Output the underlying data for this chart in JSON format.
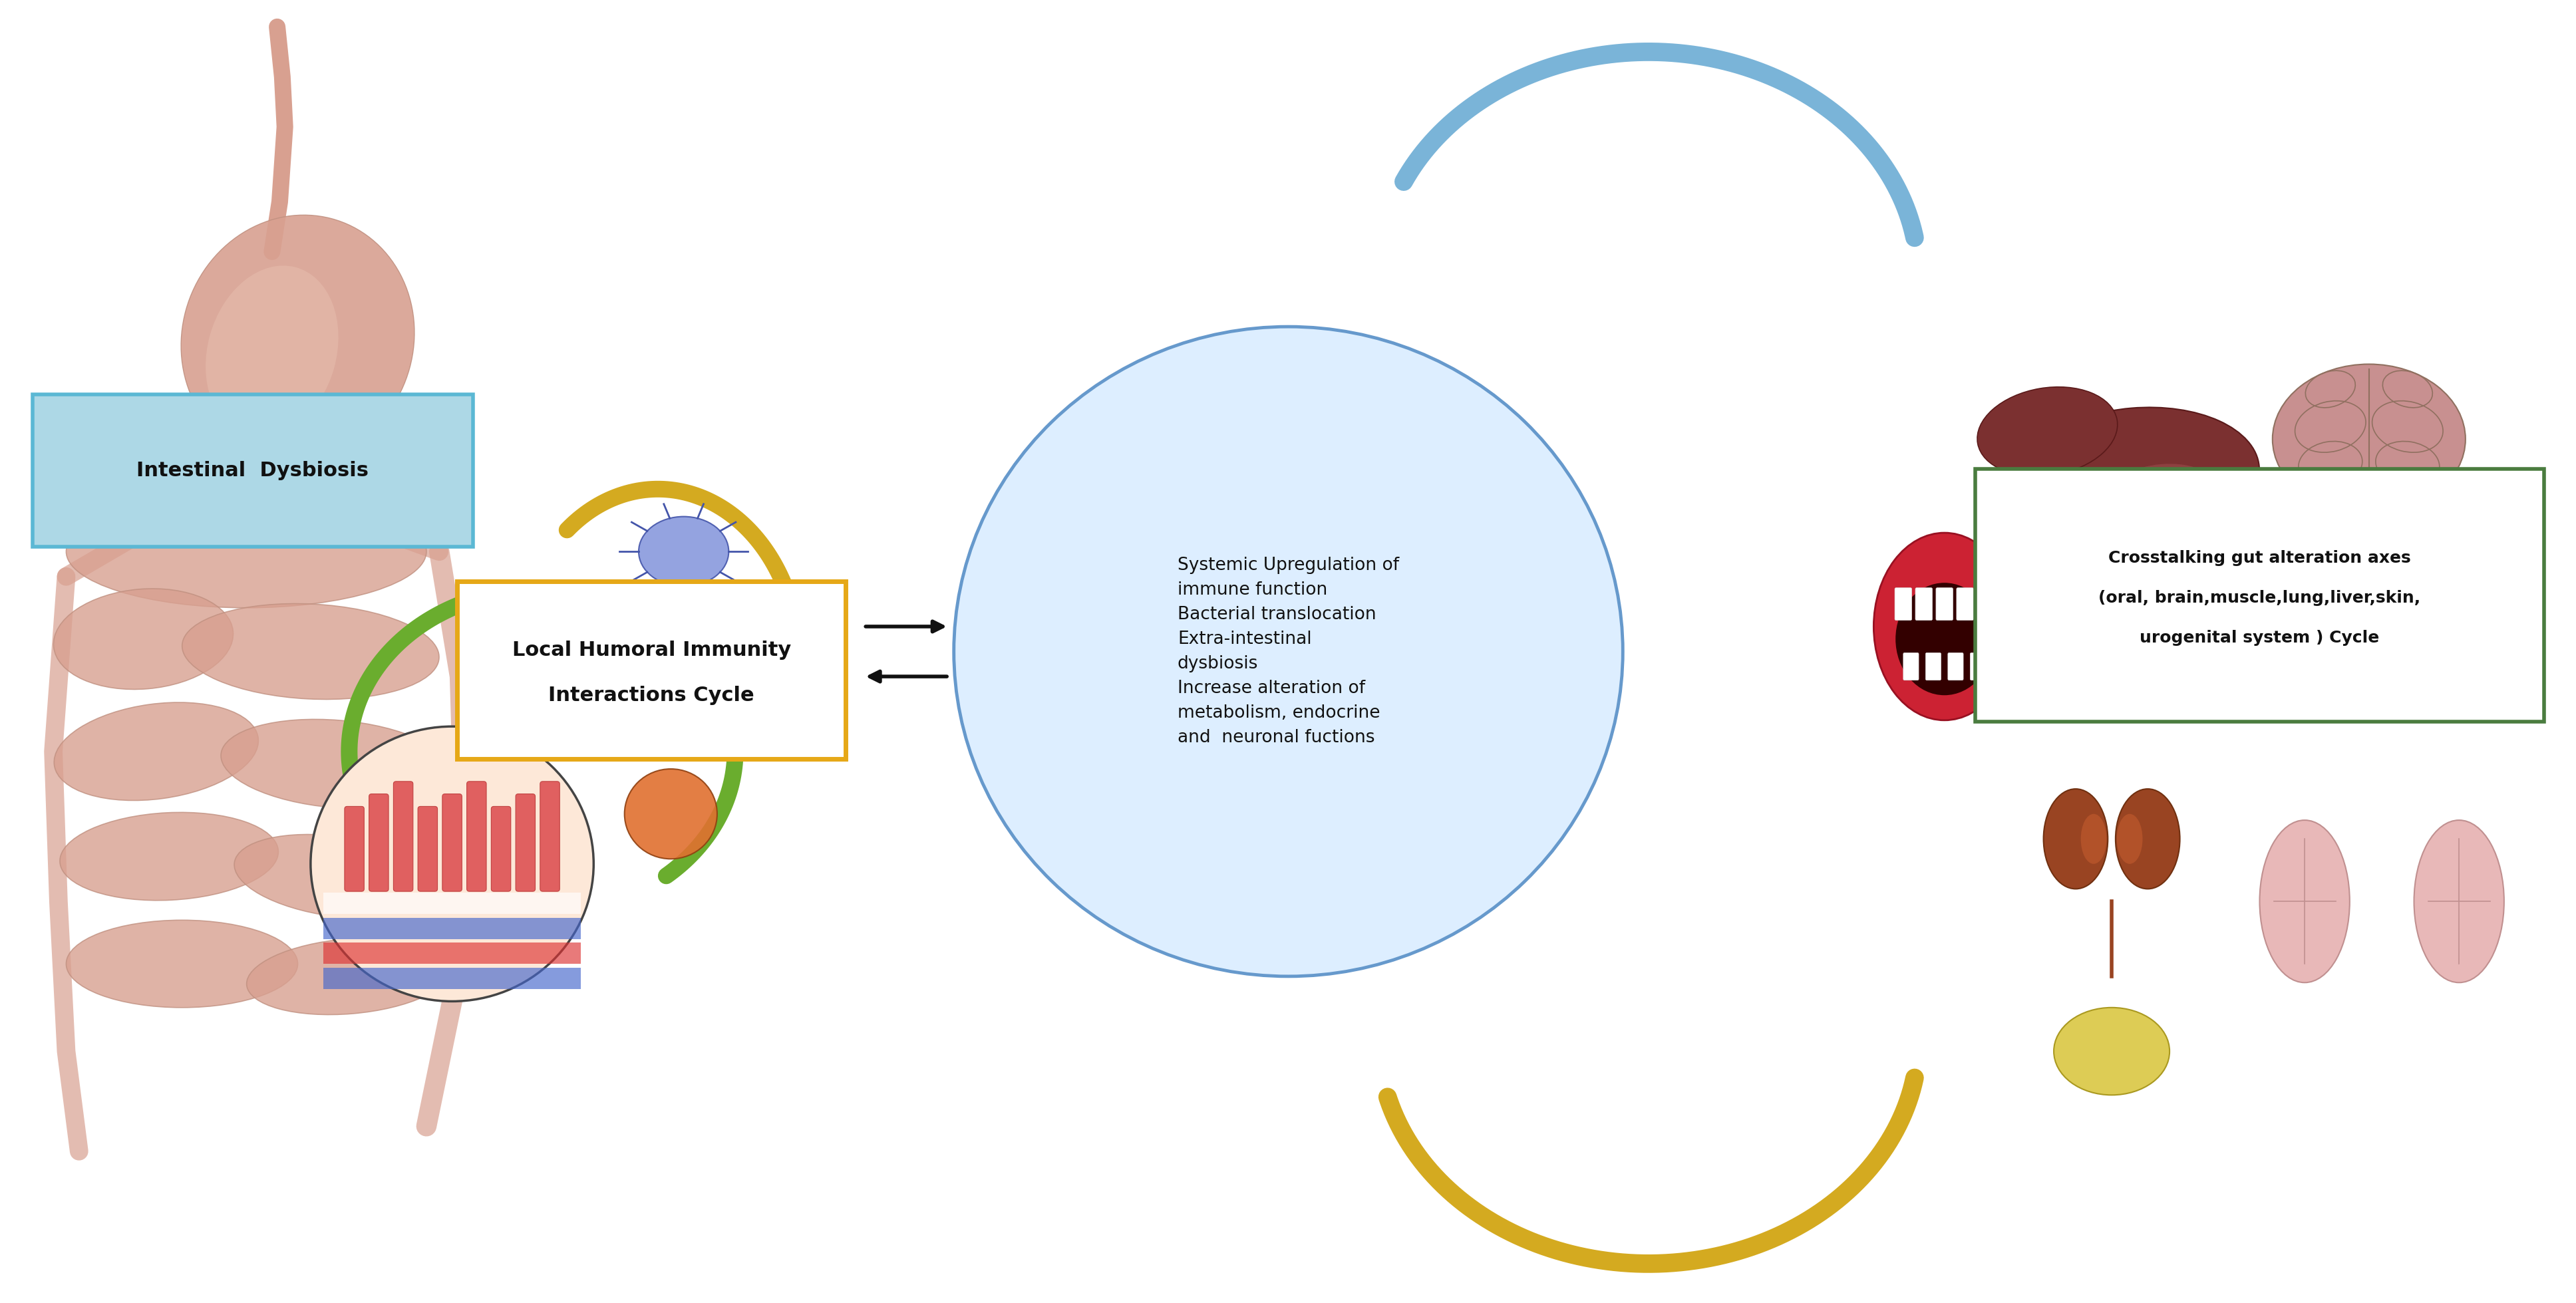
{
  "fig_width": 38.73,
  "fig_height": 19.59,
  "bg_color": "#ffffff",
  "intestinal_dysbiosis_label": "Intestinal  Dysbiosis",
  "intestinal_dysbiosis_box_facecolor": "#add8e6",
  "intestinal_dysbiosis_box_edgecolor": "#5bb8d4",
  "local_humoral_line1": "Local Humoral Immunity",
  "local_humoral_line2": "Interactions Cycle",
  "local_humoral_box_facecolor": "#ffffff",
  "local_humoral_box_edgecolor": "#e6a817",
  "central_circle_facecolor": "#ddeeff",
  "central_circle_edgecolor": "#6699cc",
  "central_text_lines": [
    "Systemic Upregulation of",
    "immune function",
    "Bacterial translocation",
    "Extra-intestinal",
    "dysbiosis",
    "Increase alteration of",
    "metabolism, endocrine",
    "and  neuronal fuctions"
  ],
  "right_box_line1": "Crosstalking gut alteration axes",
  "right_box_line2": "(oral, brain,muscle,lung,liver,skin,",
  "right_box_line3": "urogenital system ) Cycle",
  "right_box_facecolor": "#ffffff",
  "right_box_edgecolor": "#4a7c3f",
  "blue_arrow_color": "#7ab4d8",
  "gold_arrow_color": "#d4aa20",
  "green_arrow_color": "#6aad2e",
  "black_color": "#111111",
  "stomach_color": "#d8a090",
  "intestine_color": "#d8a090",
  "villi_color": "#e06060",
  "blue_cell_color": "#8899dd",
  "green_bact_color": "#88bb44",
  "orange_bact_color": "#e07030",
  "grey_bact_color": "#bbbbbb",
  "mouth_color": "#cc3344",
  "liver_color": "#7b3030",
  "brain_color": "#c89090",
  "kidney_color": "#994422",
  "bladder_color": "#ddcc55",
  "lung_color": "#e8b8b8"
}
